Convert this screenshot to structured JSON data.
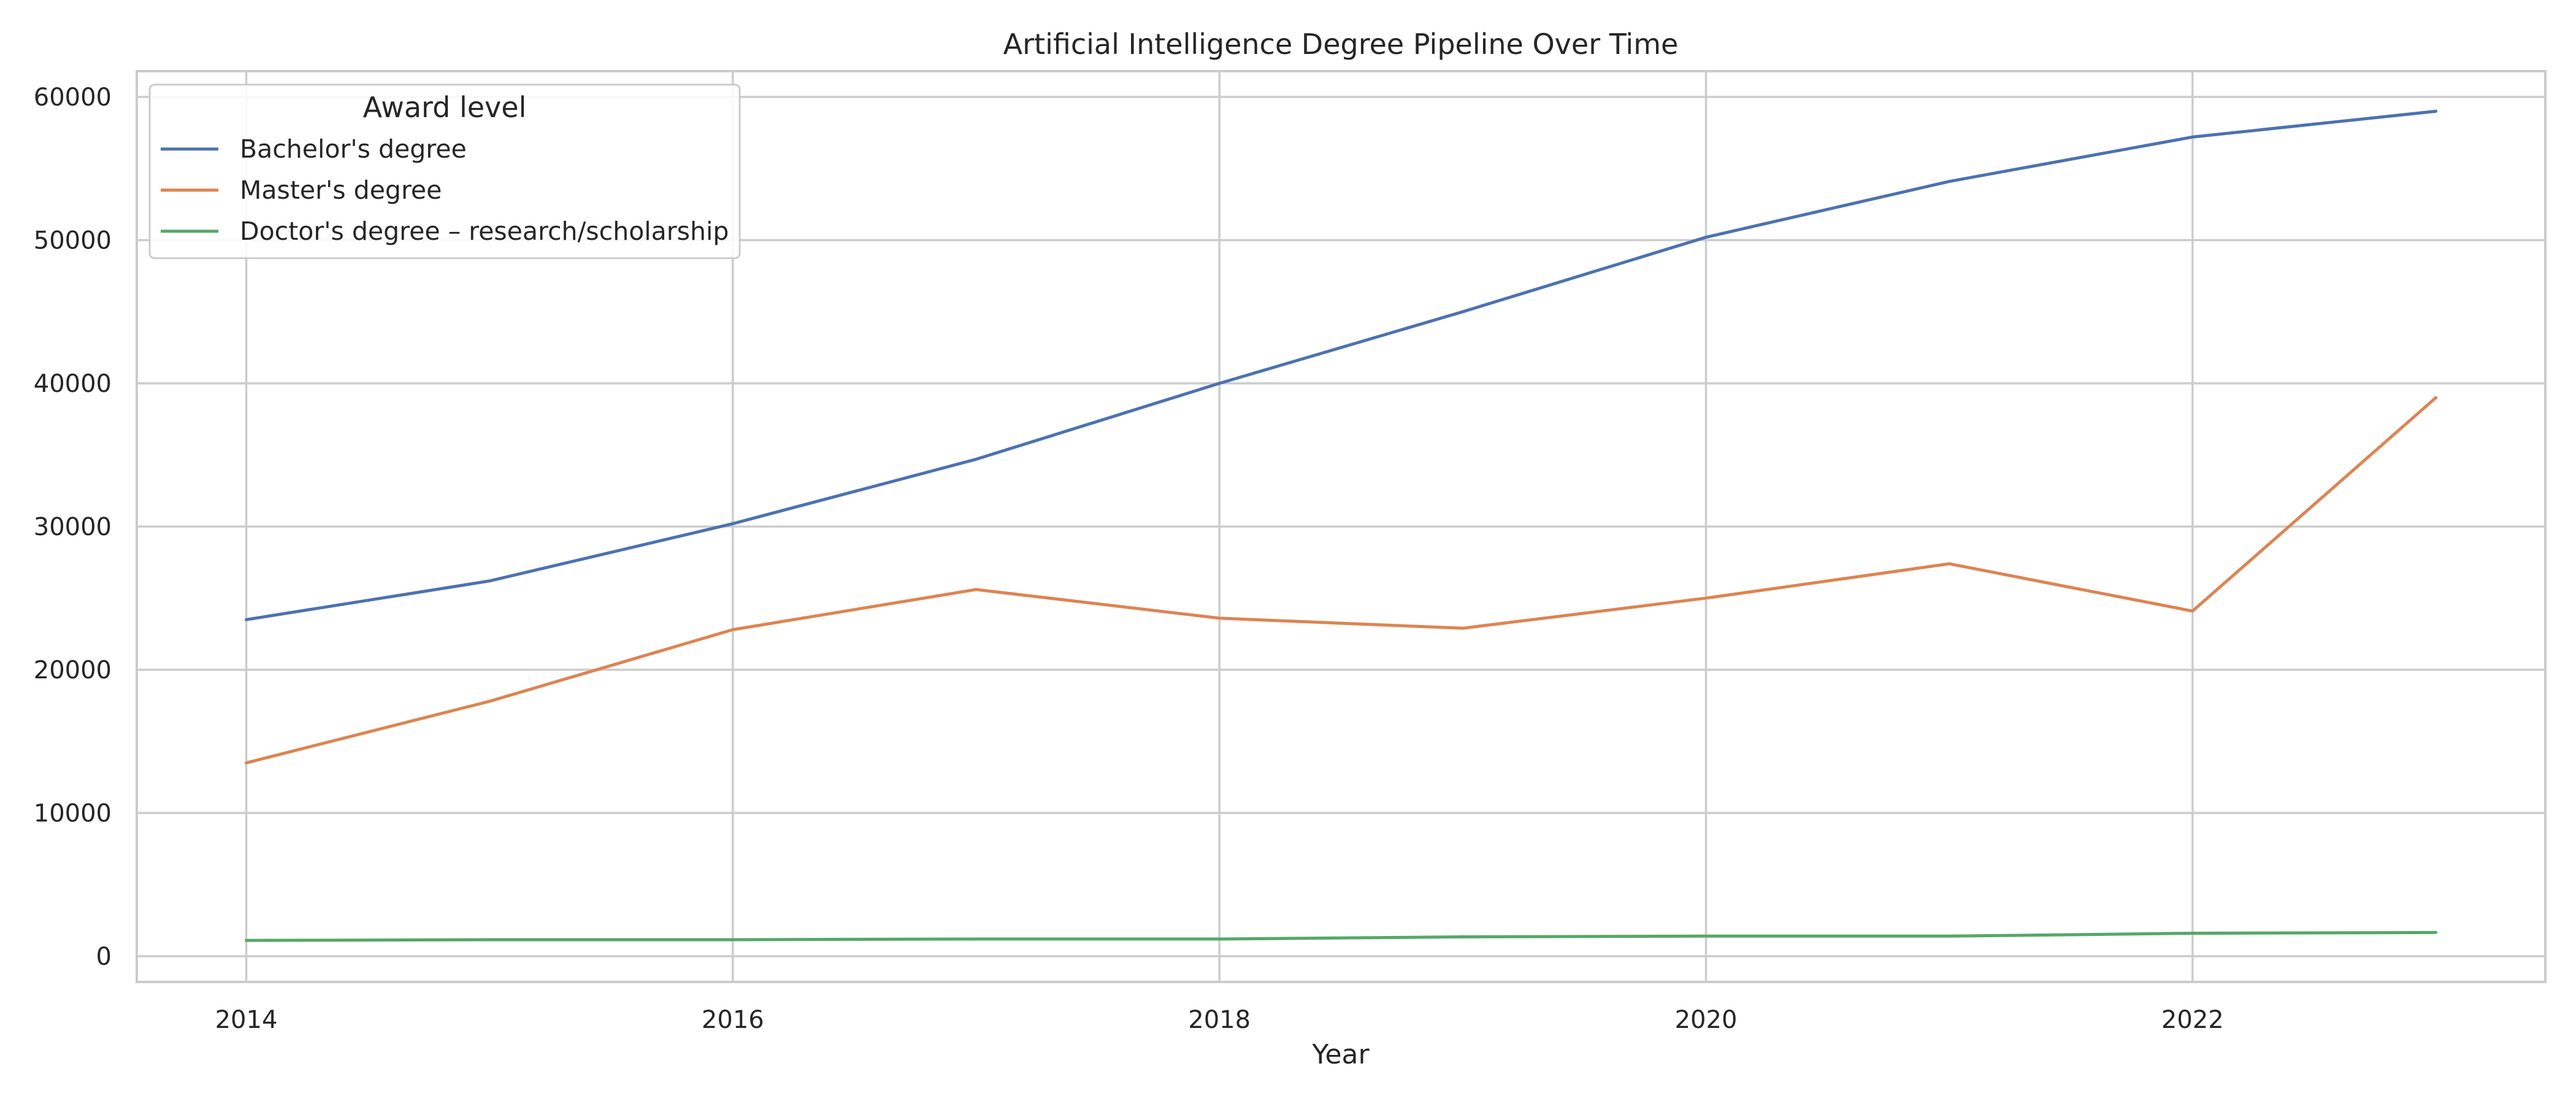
{
  "chart_data": {
    "type": "line",
    "title": "Artificial Intelligence Degree Pipeline Over Time",
    "xlabel": "Year",
    "ylabel": "",
    "xlim": [
      2013.55,
      2023.45
    ],
    "ylim": [
      -1800,
      61800
    ],
    "x_ticks": [
      2014,
      2016,
      2018,
      2020,
      2022
    ],
    "y_ticks": [
      0,
      10000,
      20000,
      30000,
      40000,
      50000,
      60000
    ],
    "grid": true,
    "legend": {
      "title": "Award level",
      "placement": "top-left"
    },
    "x": [
      2014,
      2015,
      2016,
      2017,
      2018,
      2019,
      2020,
      2021,
      2022,
      2023
    ],
    "series": [
      {
        "name": "Bachelor's degree",
        "color": "#4c72b0",
        "values": [
          23500,
          26200,
          30200,
          34700,
          40000,
          45000,
          50200,
          54100,
          57200,
          59000
        ]
      },
      {
        "name": "Master's degree",
        "color": "#dd8452",
        "values": [
          13500,
          17800,
          22800,
          25600,
          23600,
          22900,
          25000,
          27400,
          24100,
          39000
        ]
      },
      {
        "name": "Doctor's degree – research/scholarship",
        "color": "#55a868",
        "values": [
          1100,
          1150,
          1150,
          1200,
          1200,
          1350,
          1400,
          1400,
          1600,
          1650
        ]
      }
    ]
  }
}
